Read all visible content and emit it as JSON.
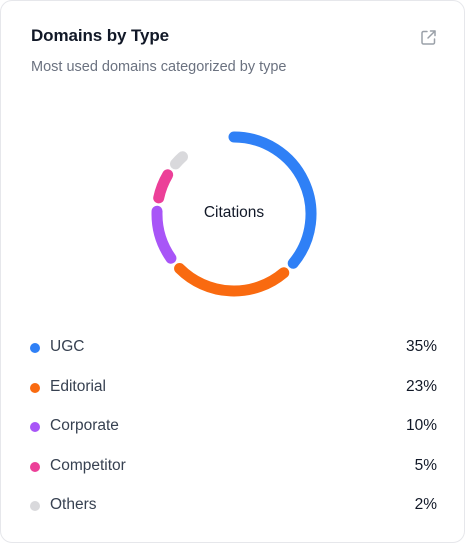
{
  "card": {
    "title": "Domains by Type",
    "subtitle": "Most used domains categorized by type",
    "open_icon": "external-link-icon"
  },
  "chart_data": {
    "type": "pie",
    "center_label": "Citations",
    "categories": [
      "UGC",
      "Editorial",
      "Corporate",
      "Competitor",
      "Others"
    ],
    "values": [
      35,
      23,
      10,
      5,
      2
    ],
    "value_labels": [
      "35%",
      "23%",
      "10%",
      "5%",
      "2%"
    ],
    "colors": [
      "#2f80f6",
      "#f96a10",
      "#a855f7",
      "#ec3f98",
      "#d9d9dc"
    ]
  }
}
